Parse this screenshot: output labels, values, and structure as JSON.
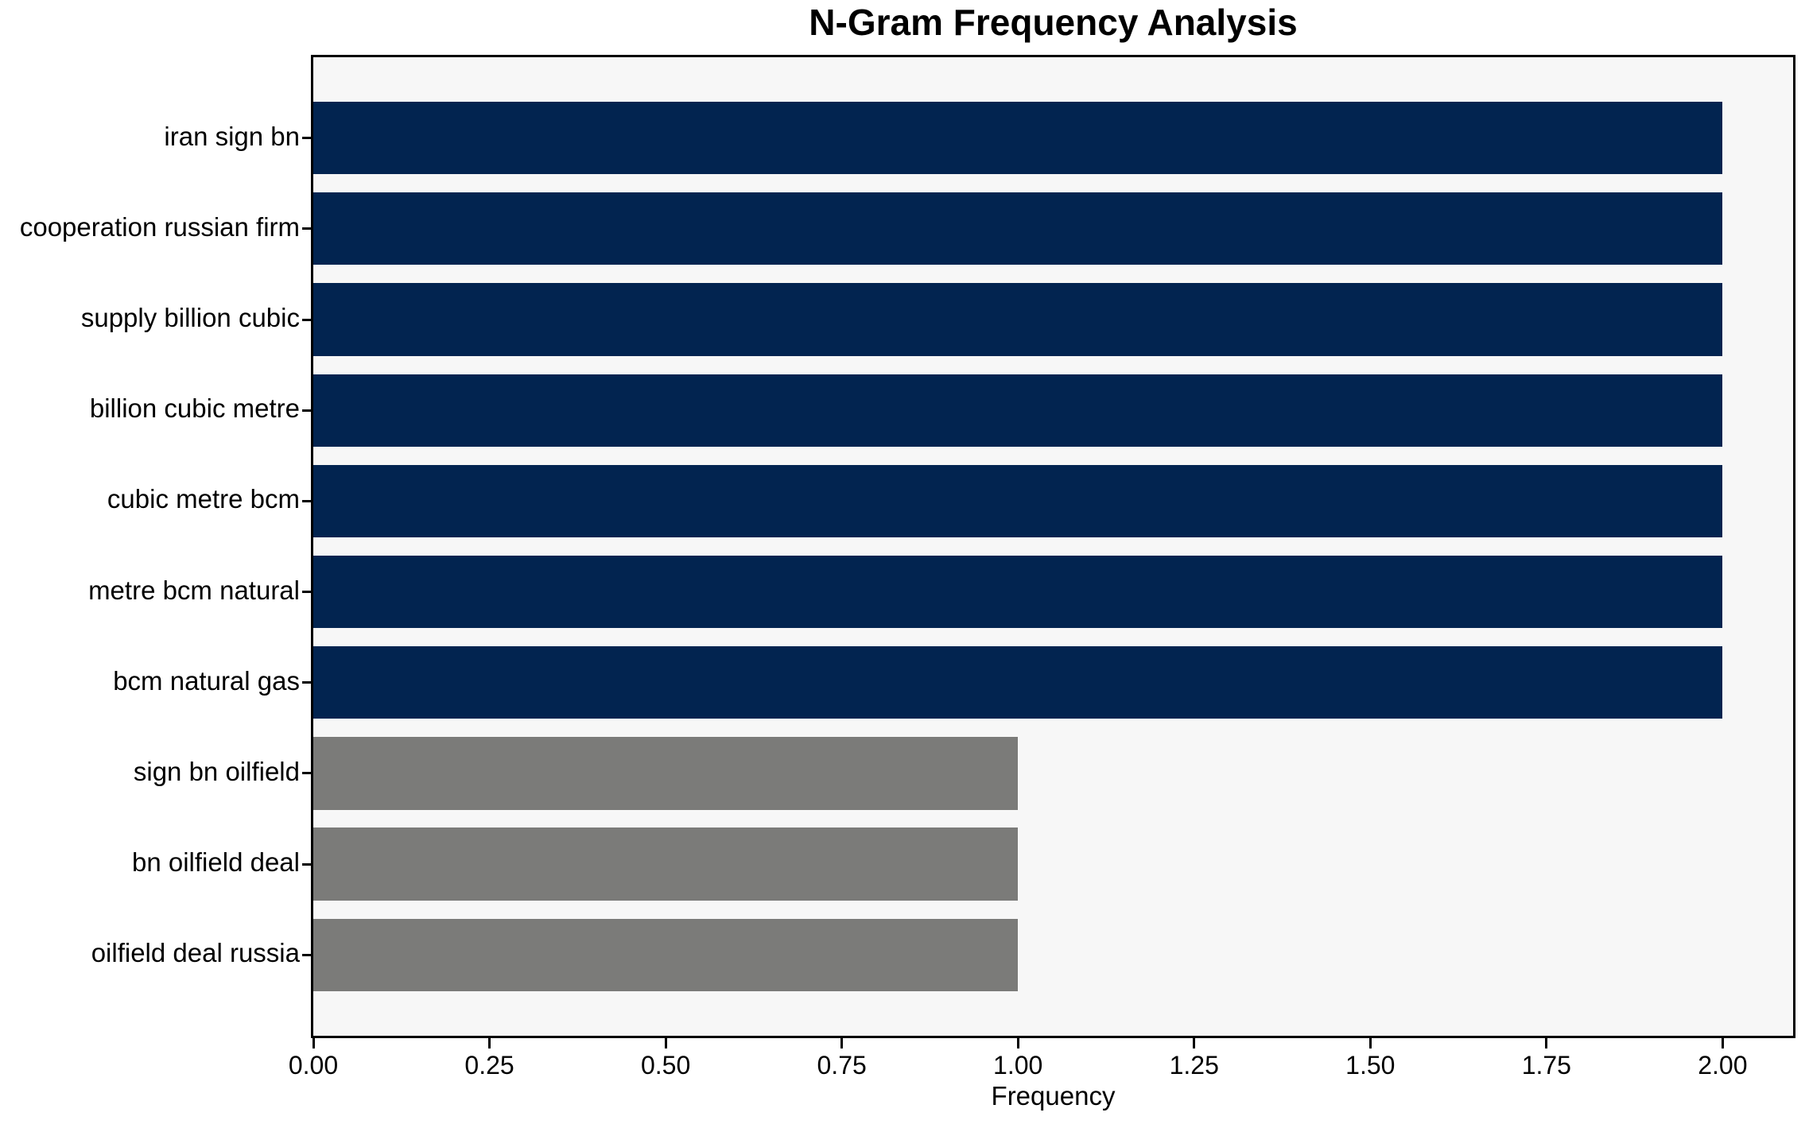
{
  "chart_data": {
    "type": "bar",
    "orientation": "horizontal",
    "title": "N-Gram Frequency Analysis",
    "xlabel": "Frequency",
    "ylabel": "",
    "categories": [
      "iran sign bn",
      "cooperation russian firm",
      "supply billion cubic",
      "billion cubic metre",
      "cubic metre bcm",
      "metre bcm natural",
      "bcm natural gas",
      "sign bn oilfield",
      "bn oilfield deal",
      "oilfield deal russia"
    ],
    "values": [
      2,
      2,
      2,
      2,
      2,
      2,
      2,
      1,
      1,
      1
    ],
    "bar_colors": [
      "#022450",
      "#022450",
      "#022450",
      "#022450",
      "#022450",
      "#022450",
      "#022450",
      "#7b7b79",
      "#7b7b79",
      "#7b7b79"
    ],
    "xlim": [
      0,
      2.1
    ],
    "xticks": [
      0,
      0.25,
      0.5,
      0.75,
      1.0,
      1.25,
      1.5,
      1.75,
      2.0
    ],
    "xtick_labels": [
      "0.00",
      "0.25",
      "0.50",
      "0.75",
      "1.00",
      "1.25",
      "1.50",
      "1.75",
      "2.00"
    ],
    "bar_height_fraction": 0.8,
    "grid": false,
    "legend_visible": false,
    "plot_background": "#f7f7f7",
    "colors": {
      "high_frequency_bar": "#022450",
      "low_frequency_bar": "#7b7b79",
      "spine": "#000000",
      "text": "#000000"
    }
  }
}
